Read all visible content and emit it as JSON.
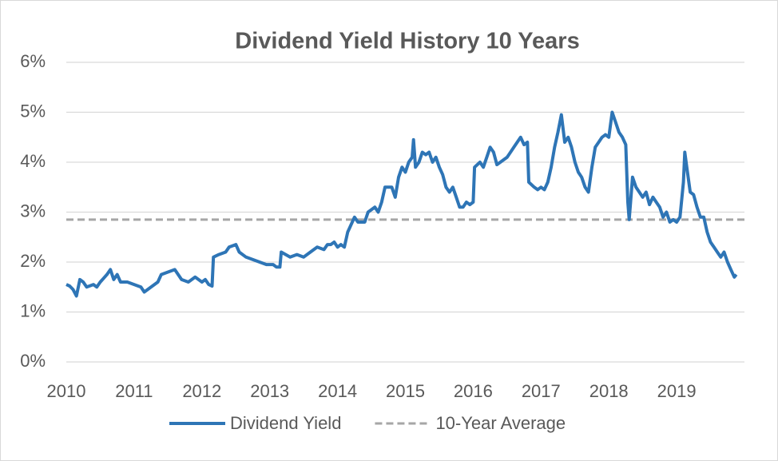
{
  "chart_data": {
    "type": "line",
    "title": "Dividend Yield History 10 Years",
    "xlim": [
      2010,
      2020
    ],
    "xticks": [
      2010,
      2011,
      2012,
      2013,
      2014,
      2015,
      2016,
      2017,
      2018,
      2019
    ],
    "ylim": [
      0,
      6
    ],
    "yticks": [
      {
        "value": 0,
        "label": "0%"
      },
      {
        "value": 1,
        "label": "1%"
      },
      {
        "value": 2,
        "label": "2%"
      },
      {
        "value": 3,
        "label": "3%"
      },
      {
        "value": 4,
        "label": "4%"
      },
      {
        "value": 5,
        "label": "5%"
      },
      {
        "value": 6,
        "label": "6%"
      }
    ],
    "grid": true,
    "series": [
      {
        "name": "Dividend Yield",
        "color": "#2e75b6",
        "dash": false,
        "x": [
          2010.0,
          2010.05,
          2010.1,
          2010.15,
          2010.2,
          2010.25,
          2010.3,
          2010.4,
          2010.45,
          2010.5,
          2010.6,
          2010.65,
          2010.7,
          2010.75,
          2010.8,
          2010.9,
          2011.0,
          2011.1,
          2011.15,
          2011.25,
          2011.35,
          2011.4,
          2011.5,
          2011.6,
          2011.7,
          2011.8,
          2011.9,
          2012.0,
          2012.05,
          2012.1,
          2012.15,
          2012.17,
          2012.25,
          2012.35,
          2012.4,
          2012.5,
          2012.55,
          2012.65,
          2012.75,
          2012.85,
          2012.95,
          2013.05,
          2013.1,
          2013.15,
          2013.17,
          2013.3,
          2013.4,
          2013.5,
          2013.6,
          2013.7,
          2013.8,
          2013.85,
          2013.9,
          2013.95,
          2014.0,
          2014.05,
          2014.1,
          2014.15,
          2014.2,
          2014.25,
          2014.3,
          2014.4,
          2014.45,
          2014.55,
          2014.6,
          2014.65,
          2014.7,
          2014.8,
          2014.85,
          2014.9,
          2014.95,
          2015.0,
          2015.05,
          2015.1,
          2015.12,
          2015.15,
          2015.2,
          2015.25,
          2015.3,
          2015.35,
          2015.4,
          2015.45,
          2015.5,
          2015.55,
          2015.6,
          2015.65,
          2015.7,
          2015.75,
          2015.8,
          2015.85,
          2015.9,
          2015.95,
          2016.0,
          2016.02,
          2016.1,
          2016.15,
          2016.2,
          2016.25,
          2016.3,
          2016.35,
          2016.4,
          2016.5,
          2016.6,
          2016.7,
          2016.75,
          2016.8,
          2016.82,
          2016.9,
          2016.95,
          2017.0,
          2017.05,
          2017.1,
          2017.15,
          2017.2,
          2017.25,
          2017.3,
          2017.35,
          2017.4,
          2017.45,
          2017.5,
          2017.55,
          2017.6,
          2017.65,
          2017.7,
          2017.75,
          2017.8,
          2017.85,
          2017.9,
          2017.95,
          2018.0,
          2018.05,
          2018.1,
          2018.15,
          2018.2,
          2018.25,
          2018.28,
          2018.3,
          2018.35,
          2018.4,
          2018.5,
          2018.55,
          2018.6,
          2018.65,
          2018.7,
          2018.75,
          2018.8,
          2018.85,
          2018.9,
          2018.95,
          2019.0,
          2019.05,
          2019.1,
          2019.12,
          2019.15,
          2019.2,
          2019.25,
          2019.3,
          2019.35,
          2019.4,
          2019.45,
          2019.5,
          2019.55,
          2019.6,
          2019.65,
          2019.7,
          2019.75,
          2019.8,
          2019.85,
          2019.88
        ],
        "values": [
          1.55,
          1.52,
          1.45,
          1.32,
          1.65,
          1.6,
          1.5,
          1.55,
          1.5,
          1.6,
          1.75,
          1.85,
          1.65,
          1.75,
          1.6,
          1.6,
          1.55,
          1.5,
          1.4,
          1.5,
          1.6,
          1.75,
          1.8,
          1.85,
          1.65,
          1.6,
          1.7,
          1.6,
          1.65,
          1.55,
          1.52,
          2.1,
          2.15,
          2.2,
          2.3,
          2.35,
          2.2,
          2.1,
          2.05,
          2.0,
          1.95,
          1.95,
          1.9,
          1.9,
          2.2,
          2.1,
          2.15,
          2.1,
          2.2,
          2.3,
          2.25,
          2.35,
          2.35,
          2.4,
          2.3,
          2.35,
          2.3,
          2.6,
          2.75,
          2.9,
          2.8,
          2.8,
          3.0,
          3.1,
          3.0,
          3.2,
          3.5,
          3.5,
          3.3,
          3.7,
          3.9,
          3.8,
          4.0,
          4.1,
          4.45,
          3.9,
          4.0,
          4.2,
          4.15,
          4.2,
          4.0,
          4.1,
          3.9,
          3.75,
          3.5,
          3.4,
          3.5,
          3.3,
          3.1,
          3.1,
          3.2,
          3.15,
          3.2,
          3.9,
          4.0,
          3.9,
          4.1,
          4.3,
          4.2,
          3.95,
          4.0,
          4.1,
          4.3,
          4.5,
          4.35,
          4.4,
          3.6,
          3.5,
          3.45,
          3.5,
          3.45,
          3.6,
          3.9,
          4.3,
          4.6,
          4.95,
          4.4,
          4.5,
          4.3,
          4.0,
          3.8,
          3.7,
          3.5,
          3.4,
          3.9,
          4.3,
          4.4,
          4.5,
          4.55,
          4.5,
          5.0,
          4.8,
          4.6,
          4.5,
          4.35,
          3.2,
          2.85,
          3.7,
          3.5,
          3.3,
          3.4,
          3.15,
          3.3,
          3.2,
          3.1,
          2.9,
          3.0,
          2.8,
          2.85,
          2.8,
          2.9,
          3.6,
          4.2,
          3.9,
          3.4,
          3.35,
          3.1,
          2.9,
          2.9,
          2.6,
          2.4,
          2.3,
          2.2,
          2.1,
          2.2,
          2.0,
          1.85,
          1.7,
          1.75
        ]
      },
      {
        "name": "10-Year Average",
        "color": "#a6a6a6",
        "dash": true,
        "x": [
          2010,
          2020
        ],
        "values": [
          2.85,
          2.85
        ]
      }
    ]
  }
}
